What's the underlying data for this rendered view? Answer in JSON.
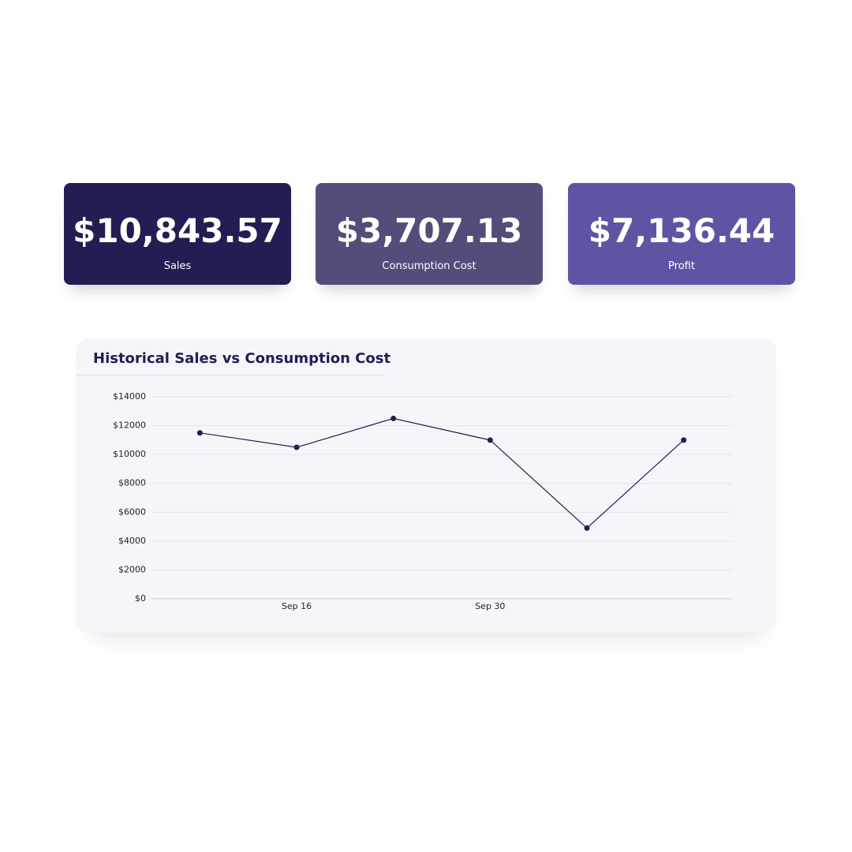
{
  "cards": [
    {
      "value": "$10,843.57",
      "label": "Sales",
      "color": "#221d52"
    },
    {
      "value": "$3,707.13",
      "label": "Consumption Cost",
      "color": "#534d7a"
    },
    {
      "value": "$7,136.44",
      "label": "Profit",
      "color": "#5d55a4"
    }
  ],
  "chart_data": {
    "type": "line",
    "title": "Historical Sales vs Consumption Cost",
    "categories": [
      null,
      "Sep 16",
      null,
      "Sep 30",
      null,
      null
    ],
    "values": [
      11500,
      10500,
      12500,
      11000,
      4900,
      11000
    ],
    "color": "#221d52",
    "ylim": [
      0,
      14000
    ],
    "yticks": [
      {
        "value": 0,
        "label": "$0"
      },
      {
        "value": 2000,
        "label": "$2000"
      },
      {
        "value": 4000,
        "label": "$4000"
      },
      {
        "value": 6000,
        "label": "$6000"
      },
      {
        "value": 8000,
        "label": "$8000"
      },
      {
        "value": 10000,
        "label": "$10000"
      },
      {
        "value": 12000,
        "label": "$12000"
      },
      {
        "value": 14000,
        "label": "$14000"
      }
    ],
    "grid": true
  }
}
